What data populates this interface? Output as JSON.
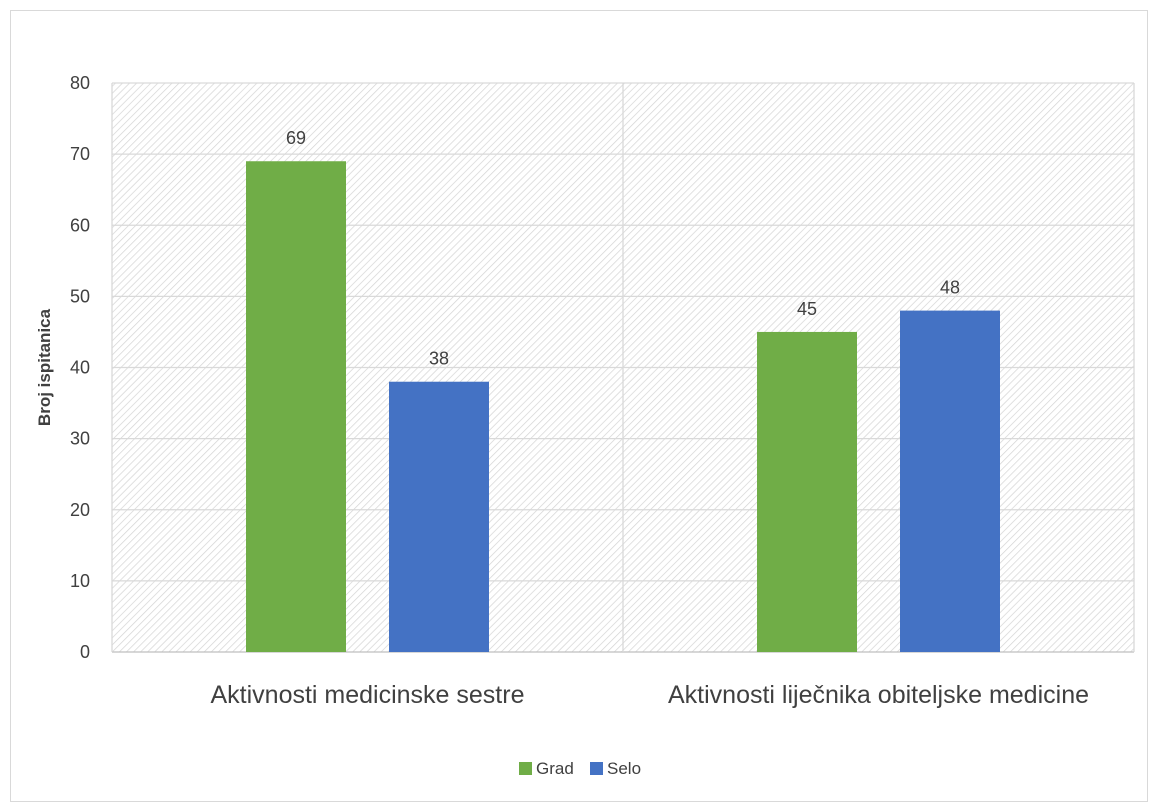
{
  "chart_data": {
    "type": "bar",
    "title": "",
    "xlabel": "",
    "ylabel": "Broj ispitanica",
    "categories": [
      "Aktivnosti medicinske sestre",
      "Aktivnosti liječnika obiteljske medicine"
    ],
    "series": [
      {
        "name": "Grad",
        "values": [
          69,
          45
        ],
        "color": "#70ad47"
      },
      {
        "name": "Selo",
        "values": [
          38,
          48
        ],
        "color": "#4472c4"
      }
    ],
    "ylim": [
      0,
      80
    ],
    "yticks": [
      0,
      10,
      20,
      30,
      40,
      50,
      60,
      70,
      80
    ],
    "grid": true,
    "plot_background": "diagonal-hatch",
    "data_labels": true,
    "legend": "bottom-center"
  }
}
